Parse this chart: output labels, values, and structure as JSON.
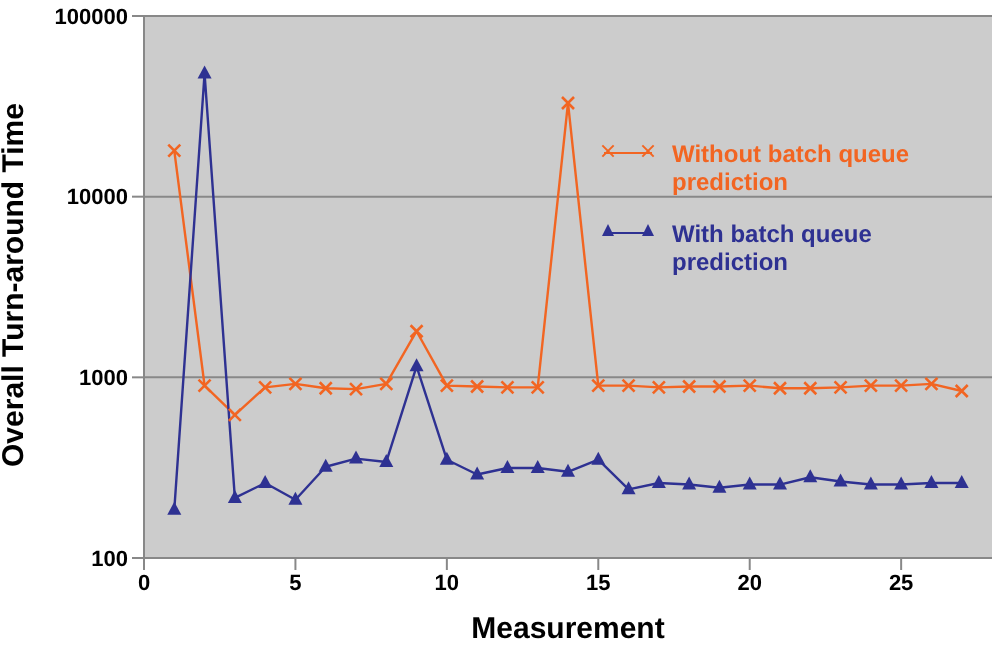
{
  "chart_data": {
    "type": "line",
    "xlabel": "Measurement",
    "ylabel": "Overall Turn-around Time",
    "x": [
      1,
      2,
      3,
      4,
      5,
      6,
      7,
      8,
      9,
      10,
      11,
      12,
      13,
      14,
      15,
      16,
      17,
      18,
      19,
      20,
      21,
      22,
      23,
      24,
      25,
      26,
      27
    ],
    "series": [
      {
        "name": "Without batch queue prediction",
        "color": "#f26522",
        "marker": "cross",
        "values": [
          18000,
          900,
          620,
          880,
          920,
          870,
          860,
          920,
          1800,
          900,
          890,
          880,
          880,
          33000,
          900,
          900,
          880,
          890,
          890,
          900,
          870,
          870,
          880,
          900,
          900,
          920,
          840
        ]
      },
      {
        "name": "With batch queue prediction",
        "color": "#2e3192",
        "marker": "triangle",
        "values": [
          185,
          48000,
          215,
          260,
          210,
          320,
          355,
          340,
          1150,
          350,
          290,
          315,
          315,
          300,
          350,
          240,
          260,
          255,
          245,
          255,
          255,
          280,
          265,
          255,
          255,
          260,
          260
        ]
      }
    ],
    "log": true,
    "xlim": [
      0,
      28
    ],
    "xticks": [
      0,
      5,
      10,
      15,
      20,
      25
    ],
    "ylim": [
      100,
      100000
    ],
    "yticks": [
      100,
      1000,
      10000,
      100000
    ],
    "grid": "y",
    "legend": "right"
  }
}
